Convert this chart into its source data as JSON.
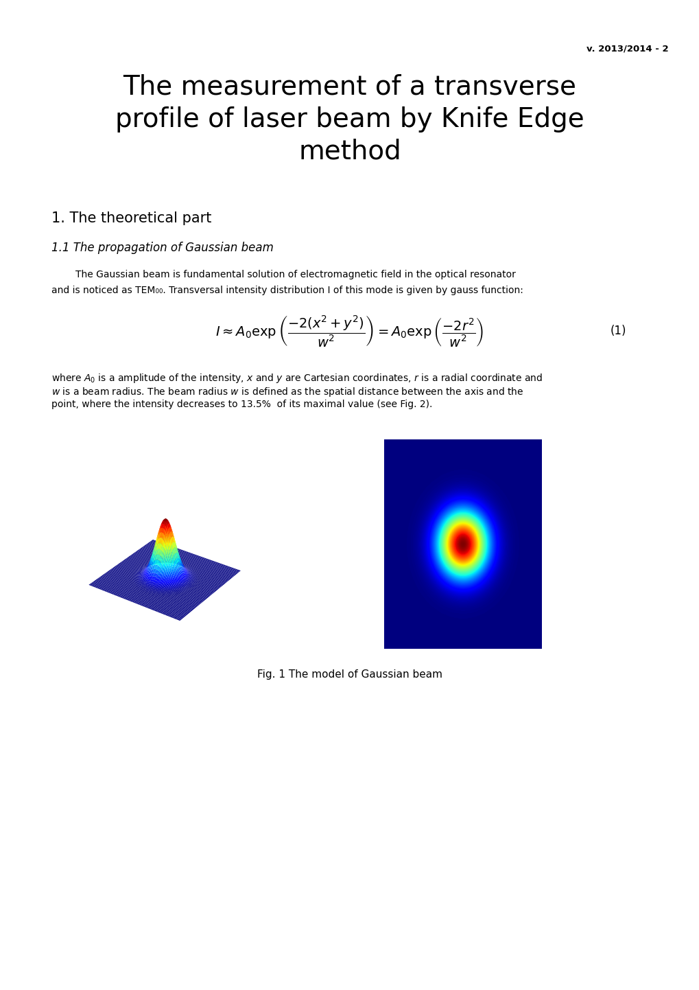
{
  "version_text": "v. 2013/2014 - 2",
  "title_line1": "The measurement of a transverse",
  "title_line2": "profile of laser beam by Knife Edge",
  "title_line3": "method",
  "section1": "1. The theoretical part",
  "subsection1": "1.1 The propagation of Gaussian beam",
  "para1_line1": "        The Gaussian beam is fundamental solution of electromagnetic field in the optical resonator",
  "para1_line2": "and is noticed as TEM₀₀. Transversal intensity distribution I of this mode is given by gauss function:",
  "para2_line1": "where A₀ is a amplitude of the intensity, x and y are Cartesian coordinates, r is a radial coordinate and",
  "para2_line2": "w is a beam radius. The beam radius w is defined as the spatial distance between the axis and the",
  "para2_line3": "point, where the intensity decreases to 13.5%  of its maximal value (see Fig. 2).",
  "fig_caption": "Fig. 1 The model of Gaussian beam",
  "background_color": "#ffffff",
  "text_color": "#000000"
}
